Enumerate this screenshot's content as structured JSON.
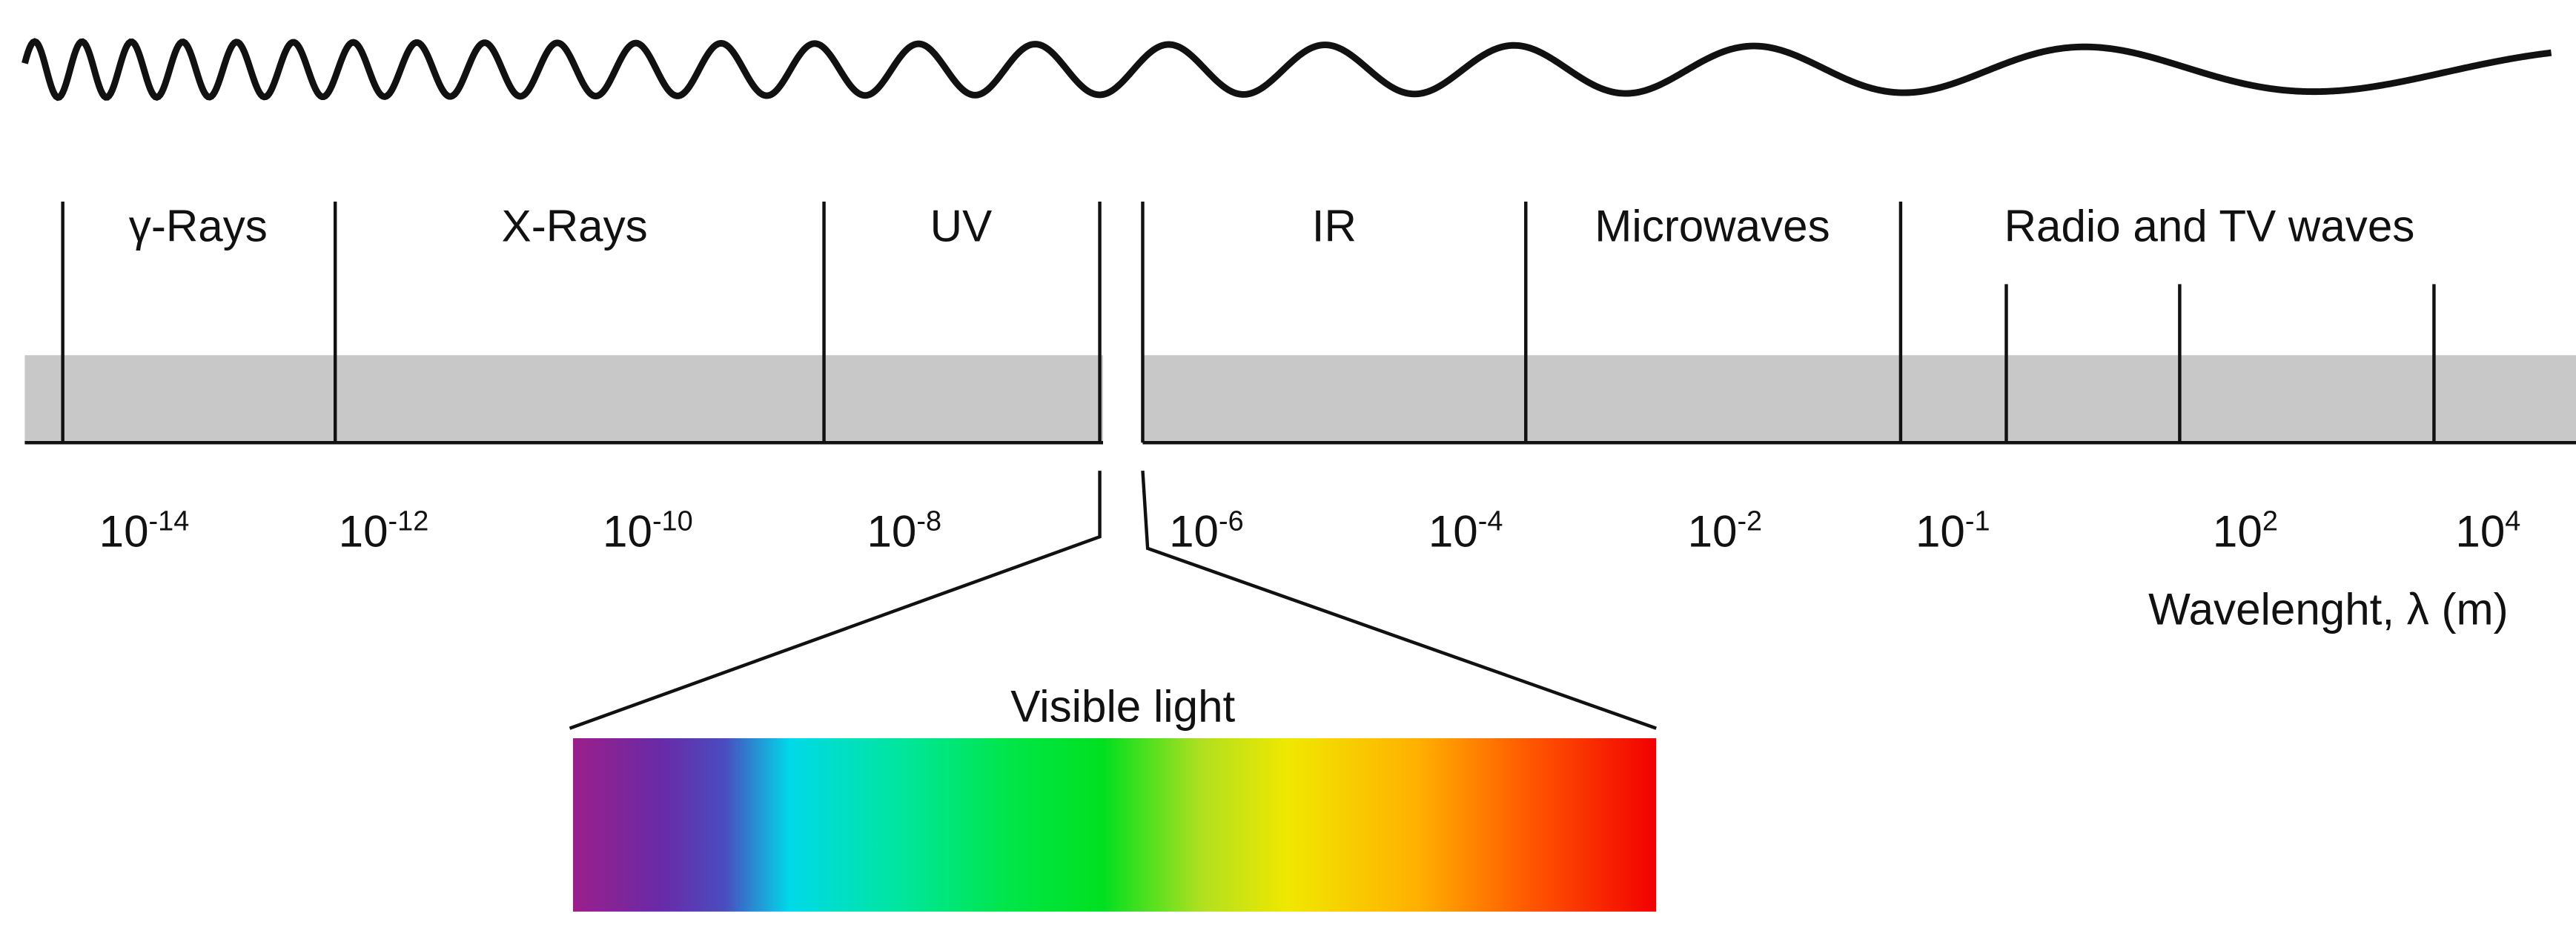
{
  "bands": [
    "γ-Rays",
    "X-Rays",
    "UV",
    "IR",
    "Microwaves",
    "Radio and TV waves"
  ],
  "wavelengths": [
    {
      "base": "10",
      "exp": "-14"
    },
    {
      "base": "10",
      "exp": "-12"
    },
    {
      "base": "10",
      "exp": "-10"
    },
    {
      "base": "10",
      "exp": "-8"
    },
    {
      "base": "10",
      "exp": "-6"
    },
    {
      "base": "10",
      "exp": "-4"
    },
    {
      "base": "10",
      "exp": "-2"
    },
    {
      "base": "10",
      "exp": "-1"
    },
    {
      "base": "10",
      "exp": "2"
    },
    {
      "base": "10",
      "exp": "4"
    }
  ],
  "axis_label": "Wavelenght,  λ (m)",
  "visible_label": "Visible light"
}
